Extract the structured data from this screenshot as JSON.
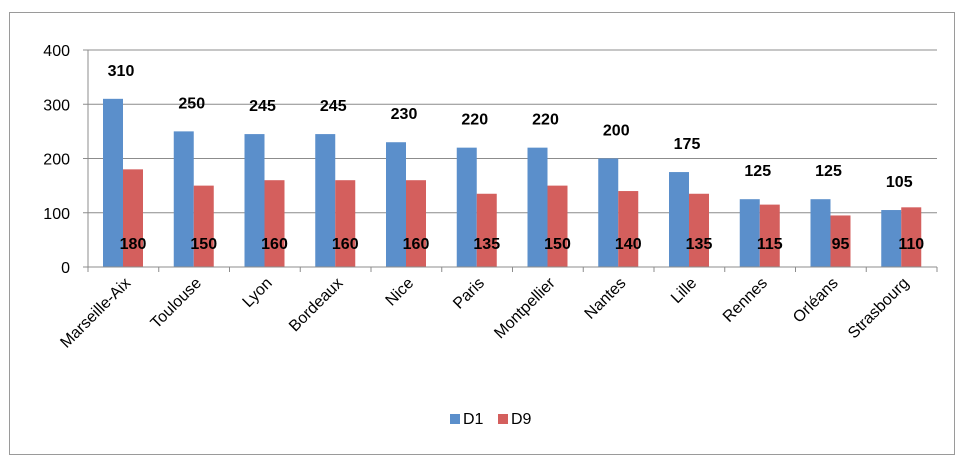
{
  "chart_data": {
    "type": "bar",
    "categories": [
      "Marseille-Aix",
      "Toulouse",
      "Lyon",
      "Bordeaux",
      "Nice",
      "Paris",
      "Montpellier",
      "Nantes",
      "Lille",
      "Rennes",
      "Orléans",
      "Strasbourg"
    ],
    "series": [
      {
        "name": "D1",
        "values": [
          310,
          250,
          245,
          245,
          230,
          220,
          220,
          200,
          175,
          125,
          125,
          105
        ],
        "color": "#5b8fcb"
      },
      {
        "name": "D9",
        "values": [
          180,
          150,
          160,
          160,
          160,
          135,
          150,
          140,
          135,
          115,
          95,
          110
        ],
        "color": "#d45f5d"
      }
    ],
    "ylim": [
      0,
      400
    ],
    "yticks": [
      0,
      100,
      200,
      300,
      400
    ],
    "grid": true,
    "legend_position": "bottom",
    "title": "",
    "xlabel": "",
    "ylabel": ""
  }
}
